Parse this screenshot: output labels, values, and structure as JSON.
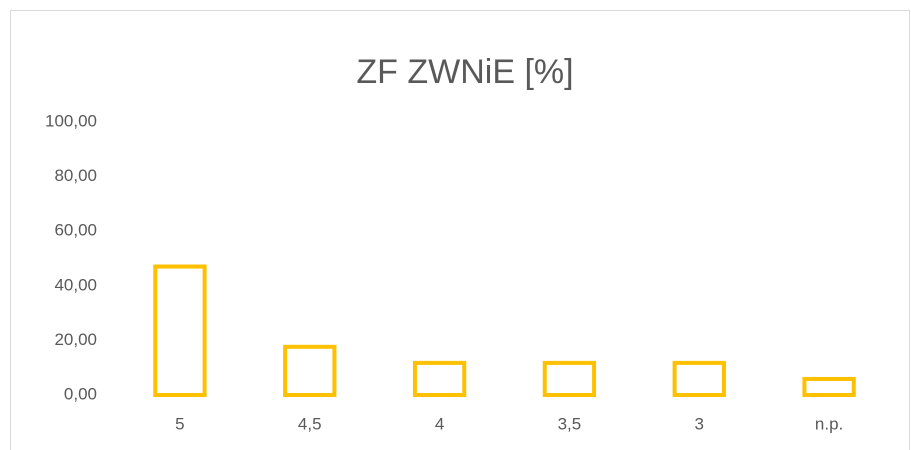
{
  "chart_data": {
    "type": "bar",
    "title": "ZF ZWNiE [%]",
    "categories": [
      "5",
      "4,5",
      "4",
      "3,5",
      "3",
      "n.p."
    ],
    "values": [
      47.06,
      17.65,
      11.76,
      11.76,
      11.76,
      5.88
    ],
    "color": "#FFC000",
    "ylim": [
      0,
      100
    ],
    "yticks": [
      {
        "value": 0,
        "label": "0,00"
      },
      {
        "value": 20,
        "label": "20,00"
      },
      {
        "value": 40,
        "label": "40,00"
      },
      {
        "value": 60,
        "label": "60,00"
      },
      {
        "value": 80,
        "label": "80,00"
      },
      {
        "value": 100,
        "label": "100,00"
      }
    ],
    "grid": false
  }
}
